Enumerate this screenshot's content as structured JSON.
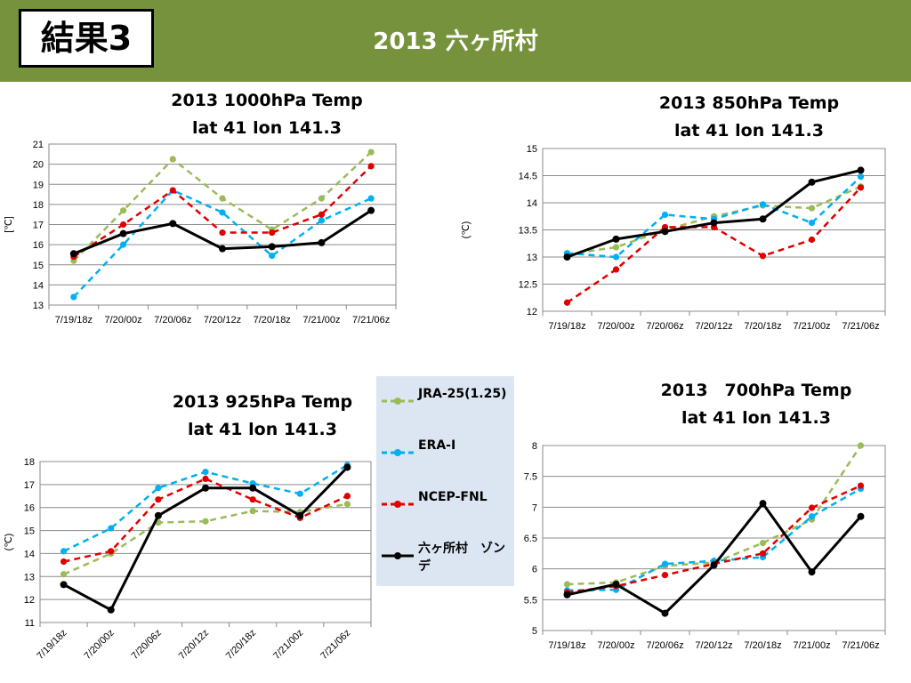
{
  "slide": {
    "badge": "結果3",
    "title": "2013 六ヶ所村"
  },
  "legend": [
    {
      "label": "JRA-25(1.25)",
      "color": "#9bbb59",
      "marker": "circle",
      "line": "dashed"
    },
    {
      "label": "ERA-I",
      "color": "#00b0f0",
      "marker": "circle",
      "line": "dashed"
    },
    {
      "label": "NCEP-FNL",
      "color": "#e00000",
      "marker": "circle",
      "line": "dashed"
    },
    {
      "label": "六ヶ所村　ゾンデ",
      "color": "#000000",
      "marker": "circle",
      "line": "solid"
    }
  ],
  "chart_data": [
    {
      "type": "line",
      "title": "2013 1000hPa Temp",
      "subtitle": "lat 41 lon 141.3",
      "ylabel": "[℃]",
      "categories": [
        "7/19/18z",
        "7/20/00z",
        "7/20/06z",
        "7/20/12z",
        "7/20/18z",
        "7/21/00z",
        "7/21/06z"
      ],
      "ylim": [
        13,
        21
      ],
      "yticks": [
        13,
        14,
        15,
        16,
        17,
        18,
        19,
        20,
        21
      ],
      "grid": true,
      "series": [
        {
          "name": "JRA-25(1.25)",
          "values": [
            15.2,
            17.7,
            20.25,
            18.3,
            16.75,
            18.3,
            20.6
          ]
        },
        {
          "name": "ERA-I",
          "values": [
            13.4,
            16.0,
            18.7,
            17.6,
            15.45,
            17.2,
            18.3
          ]
        },
        {
          "name": "NCEP-FNL",
          "values": [
            15.4,
            17.0,
            18.7,
            16.6,
            16.6,
            17.5,
            19.9
          ]
        },
        {
          "name": "六ヶ所村　ゾンデ",
          "values": [
            15.55,
            16.55,
            17.05,
            15.8,
            15.9,
            16.1,
            17.7
          ]
        }
      ]
    },
    {
      "type": "line",
      "title": "2013 850hPa Temp",
      "subtitle": "lat 41 lon 141.3",
      "ylabel": "(℃)",
      "categories": [
        "7/19/18z",
        "7/20/00z",
        "7/20/06z",
        "7/20/12z",
        "7/20/18z",
        "7/21/00z",
        "7/21/06z"
      ],
      "ylim": [
        12,
        15
      ],
      "yticks": [
        "12",
        "12.5",
        "13",
        "13.5",
        "14",
        "14.5",
        "15"
      ],
      "grid": true,
      "series": [
        {
          "name": "JRA-25(1.25)",
          "values": [
            13.05,
            13.18,
            13.5,
            13.75,
            13.95,
            13.9,
            14.3
          ]
        },
        {
          "name": "ERA-I",
          "values": [
            13.07,
            13.0,
            13.78,
            13.7,
            13.97,
            13.63,
            14.48
          ]
        },
        {
          "name": "NCEP-FNL",
          "values": [
            12.16,
            12.77,
            13.55,
            13.55,
            13.02,
            13.32,
            14.28
          ]
        },
        {
          "name": "六ヶ所村　ゾンデ",
          "values": [
            13.0,
            13.33,
            13.47,
            13.63,
            13.7,
            14.38,
            14.6
          ]
        }
      ]
    },
    {
      "type": "line",
      "title": "2013 925hPa Temp",
      "subtitle": "lat 41 lon 141.3",
      "ylabel": "(℃)",
      "categories": [
        "7/19/18z",
        "7/20/00z",
        "7/20/06z",
        "7/20/12z",
        "7/20/18z",
        "7/21/00z",
        "7/21/06z"
      ],
      "ylim": [
        11,
        18
      ],
      "yticks": [
        11,
        12,
        13,
        14,
        15,
        16,
        17,
        18
      ],
      "grid": true,
      "series": [
        {
          "name": "JRA-25(1.25)",
          "values": [
            13.1,
            14.0,
            15.35,
            15.4,
            15.85,
            15.8,
            16.15
          ]
        },
        {
          "name": "ERA-I",
          "values": [
            14.1,
            15.1,
            16.85,
            17.55,
            17.05,
            16.6,
            17.85
          ]
        },
        {
          "name": "NCEP-FNL",
          "values": [
            13.65,
            14.1,
            16.35,
            17.25,
            16.35,
            15.55,
            16.5
          ]
        },
        {
          "name": "六ヶ所村　ゾンデ",
          "values": [
            12.65,
            11.55,
            15.65,
            16.85,
            16.85,
            15.65,
            17.75
          ]
        }
      ]
    },
    {
      "type": "line",
      "title": "2013　700hPa Temp",
      "subtitle": "lat 41 lon 141.3",
      "ylabel": "(℃)",
      "categories": [
        "7/19/18z",
        "7/20/00z",
        "7/20/06z",
        "7/20/12z",
        "7/20/18z",
        "7/21/00z",
        "7/21/06z"
      ],
      "ylim": [
        5,
        8
      ],
      "yticks": [
        "5",
        "5.5",
        "6",
        "6.5",
        "7",
        "7.5",
        "8"
      ],
      "grid": true,
      "series": [
        {
          "name": "JRA-25(1.25)",
          "values": [
            5.75,
            5.78,
            6.05,
            6.1,
            6.42,
            6.8,
            8.0
          ]
        },
        {
          "name": "ERA-I",
          "values": [
            5.65,
            5.66,
            6.08,
            6.13,
            6.19,
            6.85,
            7.3
          ]
        },
        {
          "name": "NCEP-FNL",
          "values": [
            5.62,
            5.72,
            5.9,
            6.08,
            6.25,
            6.99,
            7.35
          ]
        },
        {
          "name": "六ヶ所村　ゾンデ",
          "values": [
            5.58,
            5.75,
            5.28,
            6.06,
            7.06,
            5.95,
            6.85
          ]
        }
      ]
    }
  ]
}
